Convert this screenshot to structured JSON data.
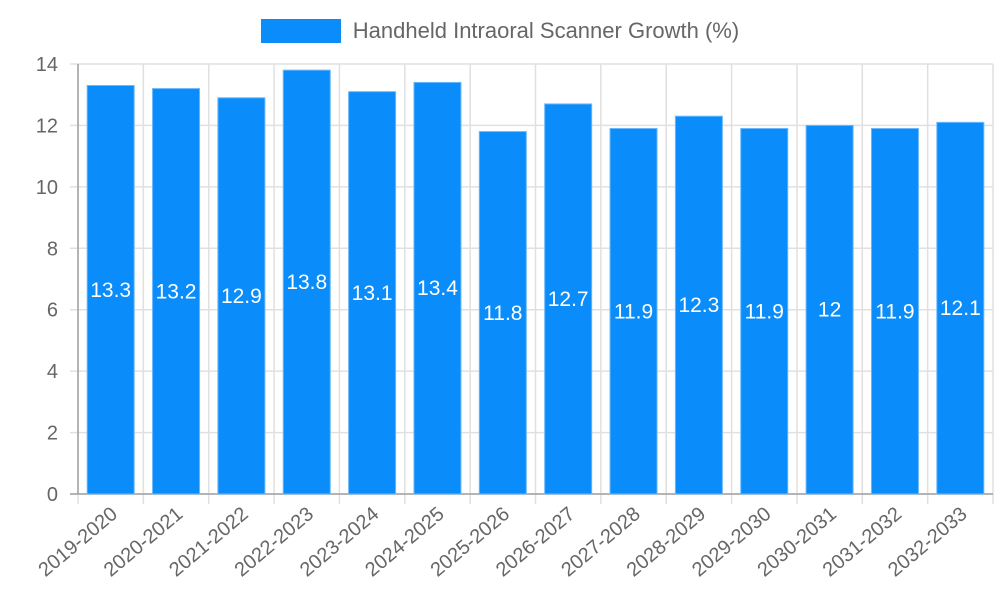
{
  "chart_data": {
    "type": "bar",
    "title": "",
    "xlabel": "",
    "ylabel": "",
    "ylim": [
      0,
      14
    ],
    "yticks": [
      0,
      2,
      4,
      6,
      8,
      10,
      12,
      14
    ],
    "grid": true,
    "legend_position": "top",
    "categories": [
      "2019-2020",
      "2020-2021",
      "2021-2022",
      "2022-2023",
      "2023-2024",
      "2024-2025",
      "2025-2026",
      "2026-2027",
      "2027-2028",
      "2028-2029",
      "2029-2030",
      "2030-2031",
      "2031-2032",
      "2032-2033"
    ],
    "series": [
      {
        "name": "Handheld Intraoral Scanner Growth (%)",
        "color": "#0a8cfa",
        "values": [
          13.3,
          13.2,
          12.9,
          13.8,
          13.1,
          13.4,
          11.8,
          12.7,
          11.9,
          12.3,
          11.9,
          12,
          11.9,
          12.1
        ]
      }
    ]
  },
  "legend": {
    "label": "Handheld Intraoral Scanner Growth (%)"
  }
}
